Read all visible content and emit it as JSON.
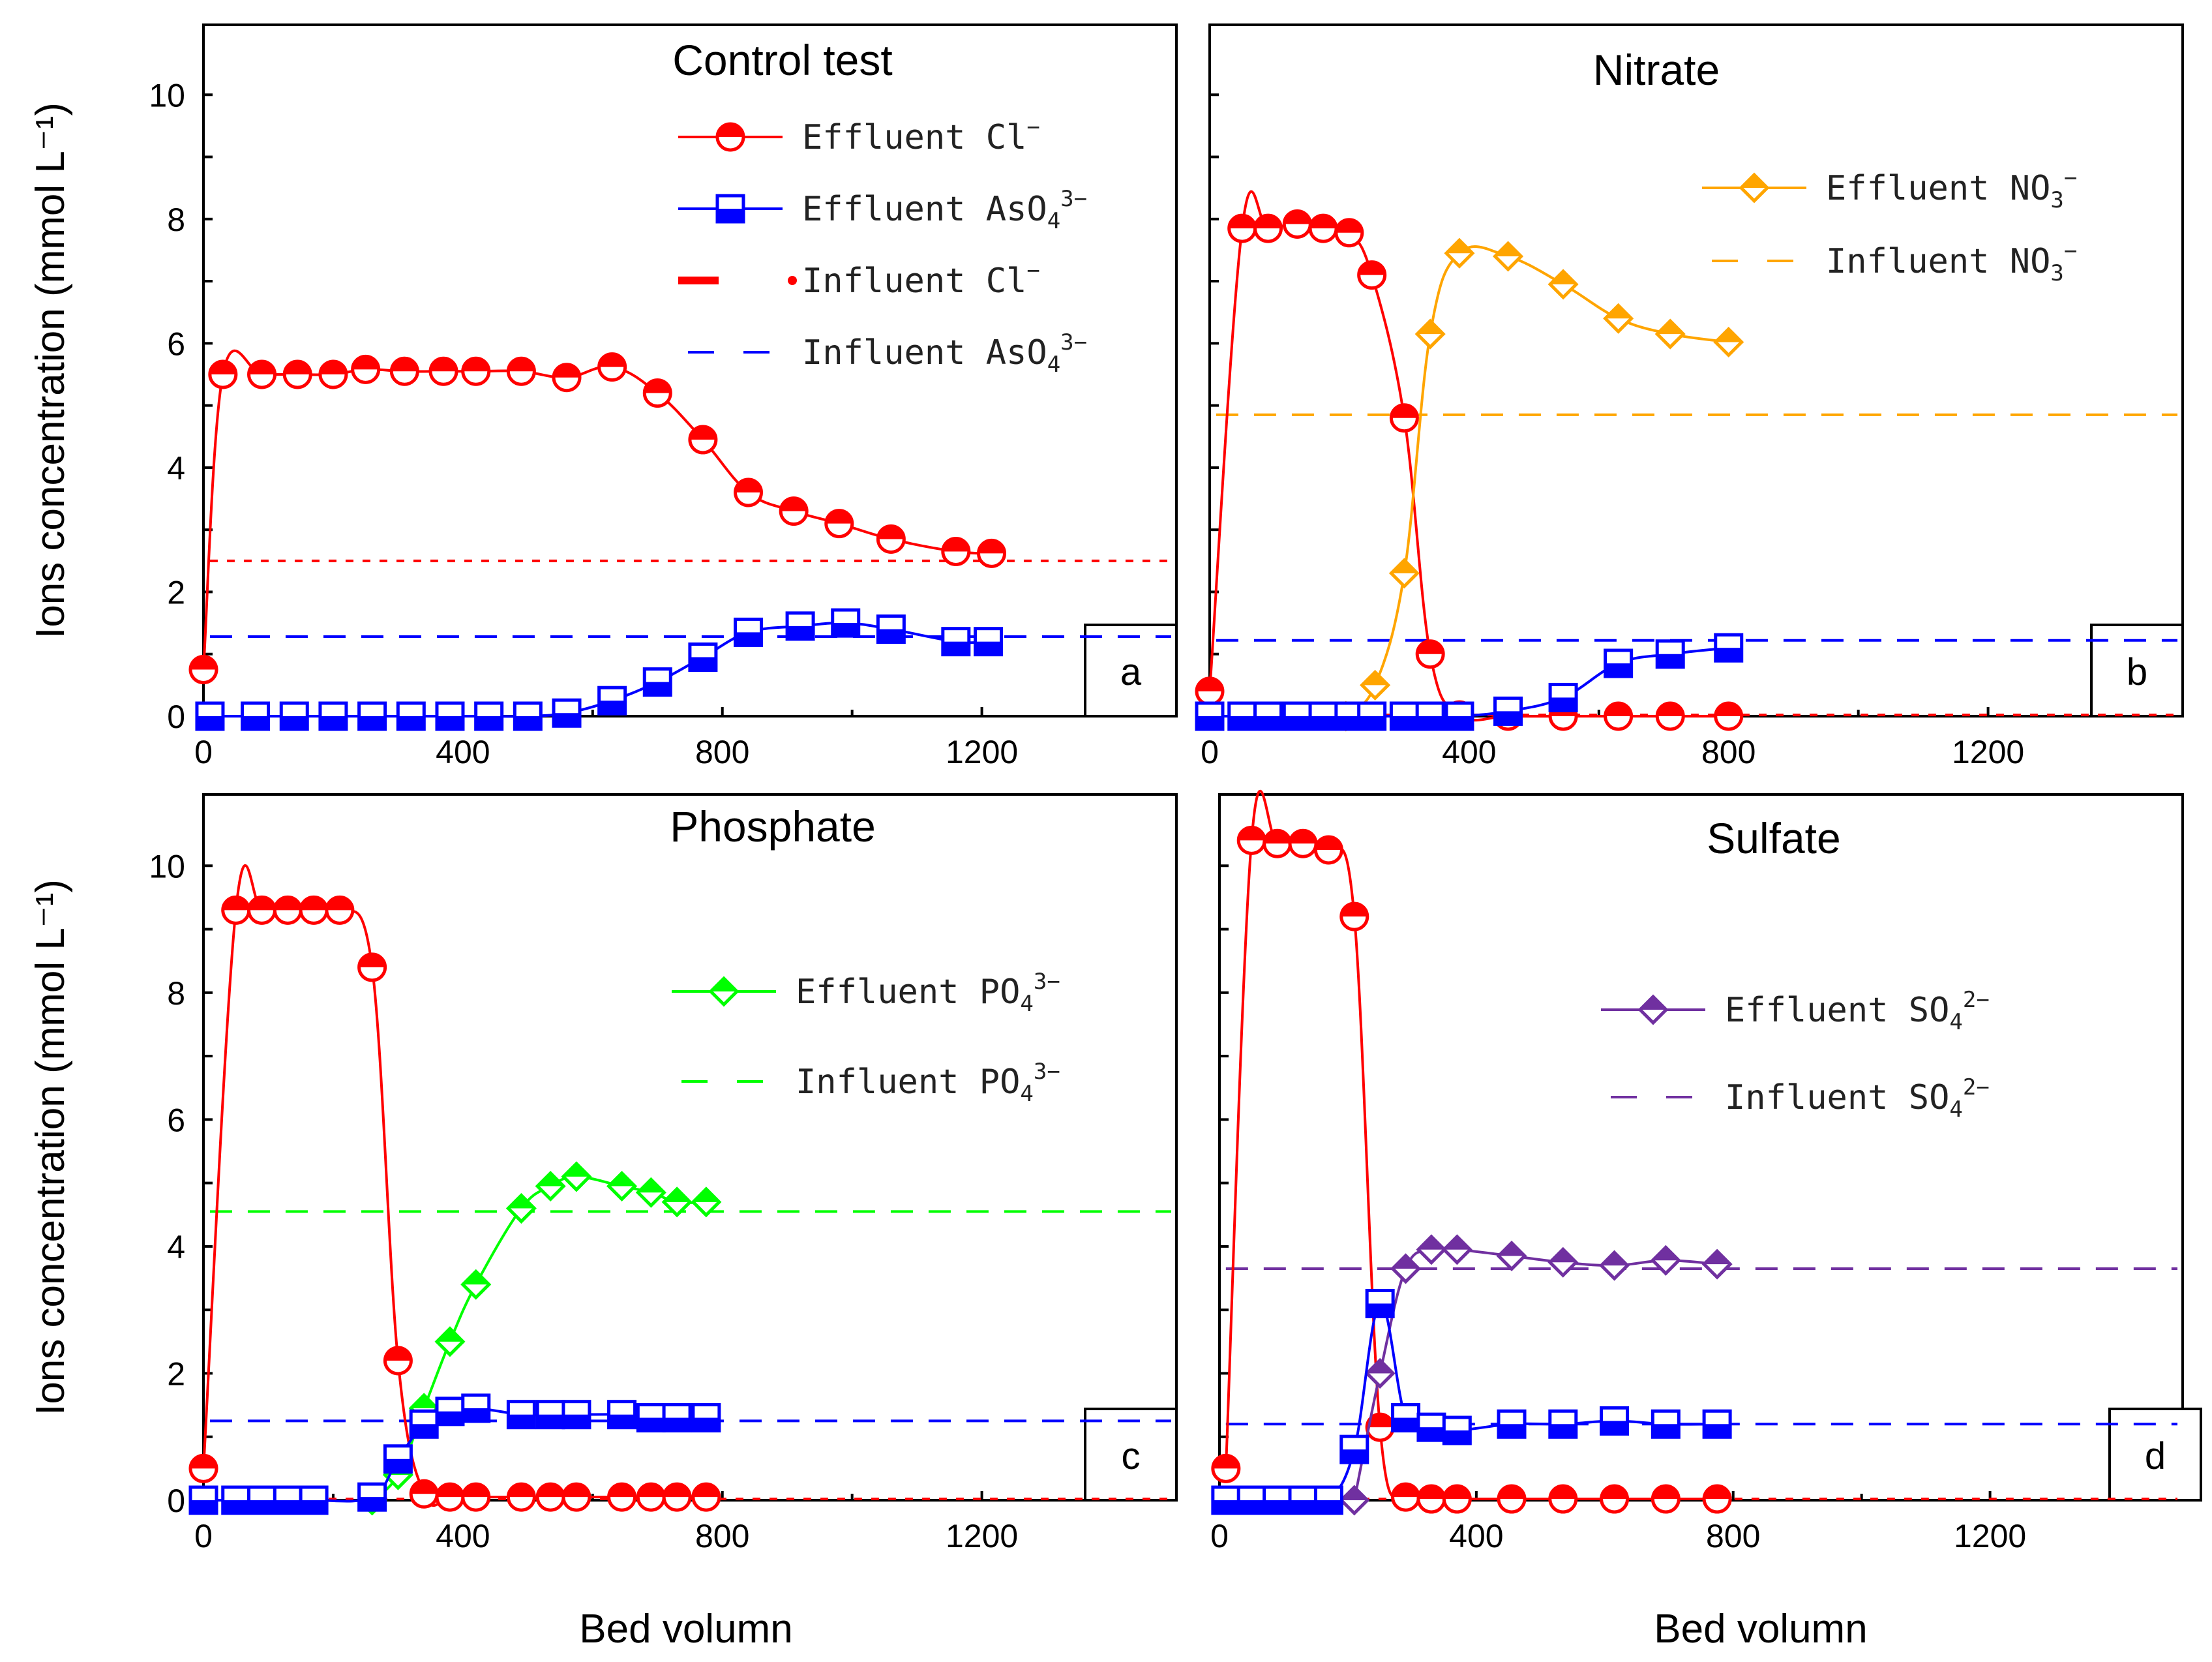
{
  "colors": {
    "cl": "#ff0000",
    "as": "#0000ff",
    "no3": "#ffa500",
    "po4": "#00ff00",
    "so4": "#7030a0"
  },
  "chart_data": [
    {
      "type": "line",
      "title": "Control test",
      "panel_label": "a",
      "xlabel": "",
      "ylabel": "Ions concentration (mmol L⁻¹)",
      "xlim": [
        0,
        1500
      ],
      "ylim": [
        0,
        11
      ],
      "xticks": [
        "0",
        "400",
        "800",
        "1200"
      ],
      "yticks": [
        "0",
        "2",
        "4",
        "6",
        "8",
        "10"
      ],
      "x_label_x": -20,
      "legend_position": "top-right",
      "series": [
        {
          "name": "Effluent Cl⁻",
          "label_main": "Effluent  Cl",
          "label_sup": "−",
          "label_sub": "",
          "color": "#ff0000",
          "marker": "circle",
          "fill": "top",
          "x": [
            0,
            30,
            90,
            145,
            200,
            250,
            310,
            370,
            420,
            490,
            560,
            630,
            700,
            770,
            840,
            910,
            980,
            1060,
            1160,
            1215
          ],
          "y": [
            0.75,
            5.5,
            5.5,
            5.5,
            5.5,
            5.58,
            5.55,
            5.55,
            5.55,
            5.55,
            5.45,
            5.62,
            5.2,
            4.45,
            3.6,
            3.3,
            3.1,
            2.85,
            2.65,
            2.62
          ]
        },
        {
          "name": "Effluent AsO₄³⁻",
          "label_main": "Effluent  AsO",
          "label_sup": "3−",
          "label_sub": "4",
          "color": "#0000ff",
          "marker": "square",
          "fill": "bottom",
          "x": [
            10,
            80,
            140,
            200,
            260,
            320,
            380,
            440,
            500,
            560,
            630,
            700,
            770,
            840,
            920,
            990,
            1060,
            1160,
            1210
          ],
          "y": [
            0,
            0,
            0,
            0,
            0,
            0,
            0,
            0,
            0,
            0.05,
            0.25,
            0.55,
            0.95,
            1.35,
            1.45,
            1.5,
            1.4,
            1.2,
            1.2
          ]
        },
        {
          "name": "Influent Cl⁻",
          "label_main": "Influent   Cl",
          "label_sup": "−",
          "label_sub": "",
          "color": "#ff0000",
          "style": "dotted",
          "y": 2.5,
          "x_start": 10
        },
        {
          "name": "Influent AsO₄³⁻",
          "label_main": "Influent   AsO",
          "label_sup": "3−",
          "label_sub": "4",
          "color": "#0000ff",
          "style": "dashed",
          "y": 1.28,
          "x_start": 10
        }
      ]
    },
    {
      "type": "line",
      "title": "Nitrate",
      "panel_label": "b",
      "xlabel": "",
      "ylabel": "",
      "xlim": [
        0,
        1500
      ],
      "ylim": [
        0,
        11
      ],
      "xticks": [
        "0",
        "400",
        "800",
        "1200"
      ],
      "yticks": [],
      "x_label_x": -10,
      "legend_position": "top-right",
      "series": [
        {
          "name": "Effluent Cl⁻",
          "label_main": "",
          "color": "#ff0000",
          "marker": "circle",
          "fill": "top",
          "x": [
            0,
            50,
            90,
            135,
            175,
            215,
            250,
            300,
            340,
            385,
            460,
            545,
            630,
            710,
            800
          ],
          "y": [
            0.4,
            7.85,
            7.85,
            7.92,
            7.85,
            7.78,
            7.1,
            4.8,
            1.0,
            0.02,
            0,
            0,
            0,
            0,
            0
          ]
        },
        {
          "name": "Effluent NO₃⁻",
          "label_main": "Effluent  NO",
          "label_sup": "−",
          "label_sub": "3",
          "color": "#ffa500",
          "marker": "diamond",
          "fill": "top",
          "x": [
            210,
            255,
            300,
            340,
            385,
            460,
            545,
            630,
            710,
            800
          ],
          "y": [
            0,
            0.5,
            2.3,
            6.15,
            7.45,
            7.4,
            6.95,
            6.4,
            6.15,
            6.02
          ]
        },
        {
          "name": "Effluent AsO₄³⁻",
          "label_main": "",
          "color": "#0000ff",
          "marker": "square",
          "fill": "bottom",
          "x": [
            0,
            50,
            90,
            135,
            175,
            215,
            250,
            300,
            340,
            385,
            460,
            545,
            630,
            710,
            800
          ],
          "y": [
            0,
            0,
            0,
            0,
            0,
            0,
            0,
            0,
            0,
            0,
            0.08,
            0.3,
            0.85,
            1.0,
            1.1
          ]
        },
        {
          "name": "Influent NO₃⁻",
          "label_main": "Influent  NO",
          "label_sup": "−",
          "label_sub": "3",
          "color": "#ffa500",
          "style": "dashed",
          "y": 4.85,
          "x_start": 10
        },
        {
          "name": "Influent AsO₄³⁻",
          "label_main": "",
          "color": "#0000ff",
          "style": "dashed",
          "y": 1.22,
          "x_start": 10
        },
        {
          "name": "Influent Cl⁻",
          "label_main": "",
          "color": "#ff0000",
          "style": "dotted",
          "y": 0.02,
          "x_start": 10
        }
      ]
    },
    {
      "type": "line",
      "title": "Phosphate",
      "panel_label": "c",
      "xlabel": "Bed volumn",
      "ylabel": "Ions concentration (mmol L⁻¹)",
      "xlim": [
        0,
        1500
      ],
      "ylim": [
        0,
        11
      ],
      "xticks": [
        "0",
        "400",
        "800",
        "1200"
      ],
      "yticks": [
        "0",
        "2",
        "4",
        "6",
        "8",
        "10"
      ],
      "x_label_x": 740,
      "legend_position": "top-right",
      "series": [
        {
          "name": "Effluent Cl⁻",
          "label_main": "",
          "color": "#ff0000",
          "marker": "circle",
          "fill": "top",
          "x": [
            0,
            50,
            90,
            130,
            170,
            210,
            260,
            300,
            340,
            380,
            420,
            490,
            535,
            575,
            645,
            690,
            730,
            775
          ],
          "y": [
            0.5,
            9.3,
            9.3,
            9.3,
            9.3,
            9.3,
            8.4,
            2.2,
            0.1,
            0.05,
            0.05,
            0.05,
            0.05,
            0.05,
            0.05,
            0.05,
            0.05,
            0.05
          ]
        },
        {
          "name": "Effluent PO₄³⁻",
          "label_main": "Effluent  PO",
          "label_sup": "3−",
          "label_sub": "4",
          "color": "#00ff00",
          "marker": "diamond",
          "fill": "top",
          "x": [
            260,
            300,
            340,
            380,
            420,
            490,
            535,
            575,
            645,
            690,
            730,
            775
          ],
          "y": [
            0,
            0.4,
            1.45,
            2.5,
            3.4,
            4.6,
            4.95,
            5.1,
            4.95,
            4.85,
            4.7,
            4.7
          ]
        },
        {
          "name": "Effluent AsO₄³⁻",
          "label_main": "",
          "color": "#0000ff",
          "marker": "square",
          "fill": "bottom",
          "x": [
            0,
            50,
            90,
            130,
            170,
            260,
            300,
            340,
            380,
            420,
            490,
            535,
            575,
            645,
            690,
            730,
            775
          ],
          "y": [
            0,
            0,
            0,
            0,
            0,
            0.05,
            0.65,
            1.2,
            1.4,
            1.45,
            1.35,
            1.35,
            1.35,
            1.35,
            1.3,
            1.3,
            1.3
          ]
        },
        {
          "name": "Influent PO₄³⁻",
          "label_main": "Influent  PO",
          "label_sup": "3−",
          "label_sub": "4",
          "color": "#00ff00",
          "style": "dashed",
          "y": 4.55,
          "x_start": 10
        },
        {
          "name": "Influent AsO₄³⁻",
          "label_main": "",
          "color": "#0000ff",
          "style": "dashed",
          "y": 1.25,
          "x_start": 10
        },
        {
          "name": "Influent Cl⁻",
          "label_main": "",
          "color": "#ff0000",
          "style": "dotted",
          "y": 0.02,
          "x_start": 10
        }
      ]
    },
    {
      "type": "line",
      "title": "Sulfate",
      "panel_label": "d",
      "xlabel": "Bed volumn",
      "ylabel": "",
      "xlim": [
        0,
        1500
      ],
      "ylim": [
        0,
        11
      ],
      "xticks": [
        "0",
        "400",
        "800",
        "1200"
      ],
      "yticks": [],
      "x_label_x": 830,
      "legend_position": "top-right",
      "series": [
        {
          "name": "Effluent Cl⁻",
          "label_main": "",
          "color": "#ff0000",
          "marker": "circle",
          "fill": "top",
          "x": [
            10,
            50,
            90,
            130,
            170,
            210,
            250,
            290,
            330,
            370,
            455,
            535,
            615,
            695,
            775
          ],
          "y": [
            0.5,
            10.4,
            10.35,
            10.35,
            10.25,
            9.2,
            1.15,
            0.05,
            0.02,
            0.02,
            0.02,
            0.02,
            0.02,
            0.02,
            0.02
          ]
        },
        {
          "name": "Effluent SO₄²⁻",
          "label_main": "Effluent  SO",
          "label_sup": "2−",
          "label_sub": "4",
          "color": "#7030a0",
          "marker": "diamond",
          "fill": "top",
          "x": [
            210,
            250,
            290,
            330,
            370,
            455,
            535,
            615,
            695,
            775
          ],
          "y": [
            0,
            2.0,
            3.65,
            3.95,
            3.95,
            3.85,
            3.75,
            3.7,
            3.78,
            3.72
          ]
        },
        {
          "name": "Effluent AsO₄³⁻",
          "label_main": "",
          "color": "#0000ff",
          "marker": "square",
          "fill": "bottom",
          "x": [
            10,
            50,
            90,
            130,
            170,
            210,
            250,
            290,
            330,
            370,
            455,
            535,
            615,
            695,
            775
          ],
          "y": [
            0,
            0,
            0,
            0,
            0,
            0.8,
            3.1,
            1.3,
            1.15,
            1.1,
            1.2,
            1.2,
            1.25,
            1.2,
            1.2
          ]
        },
        {
          "name": "Influent SO₄²⁻",
          "label_main": "Influent  SO",
          "label_sup": "2−",
          "label_sub": "4",
          "color": "#7030a0",
          "style": "dashed",
          "y": 3.65,
          "x_start": 10
        },
        {
          "name": "Influent AsO₄³⁻",
          "label_main": "",
          "color": "#0000ff",
          "style": "dashed",
          "y": 1.2,
          "x_start": 10
        },
        {
          "name": "Influent Cl⁻",
          "label_main": "",
          "color": "#ff0000",
          "style": "dotted",
          "y": 0.02,
          "x_start": 10
        }
      ]
    }
  ]
}
